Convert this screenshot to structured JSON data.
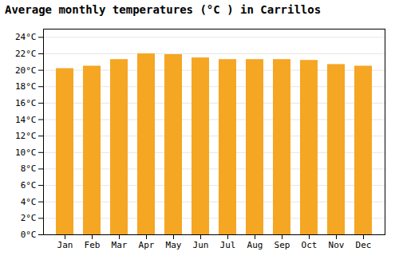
{
  "chart_data": {
    "type": "bar",
    "title": "Average monthly temperatures (°C ) in Carrillos",
    "categories": [
      "Jan",
      "Feb",
      "Mar",
      "Apr",
      "May",
      "Jun",
      "Jul",
      "Aug",
      "Sep",
      "Oct",
      "Nov",
      "Dec"
    ],
    "values": [
      20.2,
      20.5,
      21.3,
      22.0,
      21.9,
      21.5,
      21.3,
      21.3,
      21.3,
      21.2,
      20.7,
      20.5
    ],
    "color": "#F5A623",
    "ylim": [
      0,
      25
    ],
    "yticks": [
      {
        "value": 0,
        "label": "0°C"
      },
      {
        "value": 2,
        "label": "2°C"
      },
      {
        "value": 4,
        "label": "4°C"
      },
      {
        "value": 6,
        "label": "6°C"
      },
      {
        "value": 8,
        "label": "8°C"
      },
      {
        "value": 10,
        "label": "10°C"
      },
      {
        "value": 12,
        "label": "12°C"
      },
      {
        "value": 14,
        "label": "14°C"
      },
      {
        "value": 16,
        "label": "16°C"
      },
      {
        "value": 18,
        "label": "18°C"
      },
      {
        "value": 20,
        "label": "20°C"
      },
      {
        "value": 22,
        "label": "22°C"
      },
      {
        "value": 24,
        "label": "24°C"
      }
    ],
    "grid": true
  }
}
